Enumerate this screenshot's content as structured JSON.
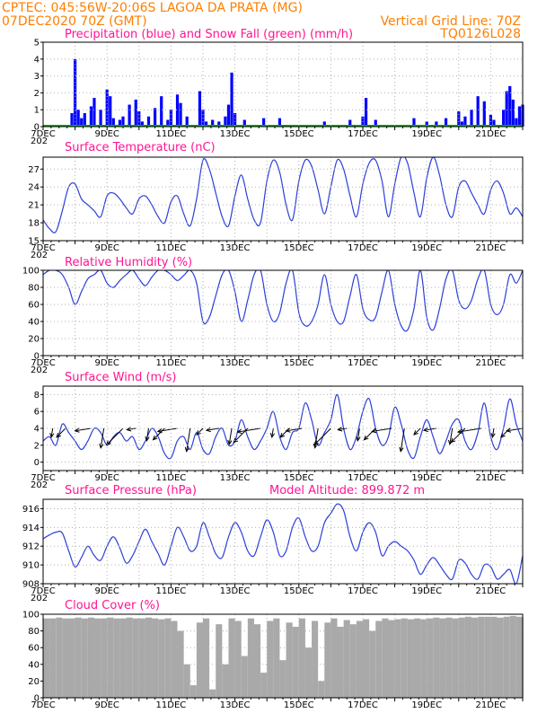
{
  "header": {
    "line1": "CPTEC:   045:56W-20:06S   LAGOA DA PRATA (MG)",
    "line2": "07DEC2020 70Z (GMT)",
    "vgrid": "Vertical Grid Line: 70Z",
    "code": "TQ0126L028"
  },
  "colors": {
    "header": "#ff7f00",
    "panel_title": "#ff1493",
    "precip": "#0000ff",
    "snow": "#00aa00",
    "line": "#2c3fd8",
    "cloud": "#a9a9a9",
    "grid": "#b0b0b0"
  },
  "x_axis": {
    "day_start": 7,
    "day_end": 22,
    "tick_labels": [
      "7DEC",
      "9DEC",
      "11DEC",
      "13DEC",
      "15DEC",
      "17DEC",
      "19DEC",
      "21DEC"
    ],
    "tick_days": [
      7,
      9,
      11,
      13,
      15,
      17,
      19,
      21
    ],
    "year_stub": "202"
  },
  "chart_data": [
    {
      "type": "bar",
      "title": "Precipitation (blue) and Snow Fall (green) (mm/h)",
      "ylim": [
        0,
        5
      ],
      "yticks": [
        "0",
        "1",
        "2",
        "3",
        "4",
        "5"
      ],
      "series": [
        {
          "name": "Precipitation",
          "x": [
            7.9,
            8.0,
            8.1,
            8.2,
            8.3,
            8.5,
            8.6,
            8.8,
            9.0,
            9.1,
            9.2,
            9.4,
            9.5,
            9.7,
            9.9,
            10.0,
            10.1,
            10.3,
            10.5,
            10.7,
            10.9,
            11.0,
            11.2,
            11.3,
            11.5,
            11.9,
            12.0,
            12.1,
            12.3,
            12.5,
            12.7,
            12.8,
            12.9,
            13.0,
            13.3,
            13.9,
            14.4,
            15.8,
            16.6,
            17.0,
            17.1,
            17.4,
            18.6,
            19.0,
            19.3,
            19.6,
            20.0,
            20.1,
            20.2,
            20.4,
            20.6,
            20.8,
            21.0,
            21.1,
            21.4,
            21.5,
            21.6,
            21.7,
            21.8,
            21.9,
            22.0
          ],
          "values": [
            0.8,
            4.0,
            1.0,
            0.5,
            0.8,
            1.2,
            1.7,
            1.0,
            2.2,
            1.8,
            0.5,
            0.4,
            0.6,
            1.3,
            1.6,
            0.9,
            0.3,
            0.6,
            1.1,
            1.8,
            0.4,
            1.0,
            1.9,
            1.4,
            0.6,
            2.1,
            1.0,
            0.3,
            0.4,
            0.3,
            0.6,
            1.3,
            3.2,
            0.8,
            0.4,
            0.5,
            0.5,
            0.3,
            0.4,
            0.6,
            1.7,
            0.4,
            0.5,
            0.3,
            0.3,
            0.5,
            0.9,
            0.3,
            0.6,
            1.0,
            1.8,
            1.5,
            0.7,
            0.4,
            1.0,
            2.1,
            2.4,
            1.6,
            0.5,
            1.2,
            1.3
          ]
        },
        {
          "name": "Snow Fall",
          "x": [
            7.0,
            22.0
          ],
          "values": [
            0,
            0
          ]
        }
      ]
    },
    {
      "type": "line",
      "title": "Surface Temperature (nC)",
      "ylim": [
        15,
        29
      ],
      "yticks": [
        "15",
        "18",
        "21",
        "24",
        "27"
      ],
      "x": [
        7.0,
        7.2,
        7.4,
        7.6,
        7.8,
        8.0,
        8.2,
        8.4,
        8.6,
        8.8,
        9.0,
        9.2,
        9.4,
        9.6,
        9.8,
        10.0,
        10.2,
        10.4,
        10.6,
        10.8,
        11.0,
        11.2,
        11.4,
        11.6,
        11.8,
        12.0,
        12.2,
        12.4,
        12.6,
        12.8,
        13.0,
        13.2,
        13.4,
        13.6,
        13.8,
        14.0,
        14.2,
        14.4,
        14.6,
        14.8,
        15.0,
        15.2,
        15.4,
        15.6,
        15.8,
        16.0,
        16.2,
        16.4,
        16.6,
        16.8,
        17.0,
        17.2,
        17.4,
        17.6,
        17.8,
        18.0,
        18.2,
        18.4,
        18.6,
        18.8,
        19.0,
        19.2,
        19.4,
        19.6,
        19.8,
        20.0,
        20.2,
        20.4,
        20.6,
        20.8,
        21.0,
        21.2,
        21.4,
        21.6,
        21.8,
        22.0
      ],
      "values": [
        18.5,
        17.0,
        16.5,
        20.0,
        24.0,
        24.5,
        22.0,
        21.0,
        20.0,
        19.0,
        22.5,
        23.0,
        22.0,
        20.5,
        19.5,
        22.0,
        22.5,
        21.0,
        19.0,
        18.0,
        21.5,
        22.5,
        19.5,
        17.5,
        22.0,
        28.5,
        27.0,
        23.0,
        19.0,
        17.5,
        22.5,
        26.0,
        22.0,
        18.5,
        18.0,
        25.0,
        28.5,
        26.5,
        21.0,
        18.5,
        25.0,
        28.5,
        27.5,
        23.5,
        19.5,
        24.0,
        28.5,
        27.0,
        22.5,
        19.0,
        24.5,
        28.0,
        28.5,
        25.0,
        19.0,
        24.5,
        29.0,
        28.0,
        23.0,
        19.0,
        25.5,
        29.0,
        26.0,
        21.0,
        19.0,
        24.0,
        25.0,
        23.0,
        21.0,
        19.5,
        23.5,
        25.0,
        23.0,
        19.5,
        20.5,
        19.0
      ]
    },
    {
      "type": "line",
      "title": "Relative Humidity (%)",
      "ylim": [
        0,
        100
      ],
      "yticks": [
        "0",
        "20",
        "40",
        "60",
        "80",
        "100"
      ],
      "x": [
        7.0,
        7.2,
        7.4,
        7.6,
        7.8,
        8.0,
        8.2,
        8.4,
        8.6,
        8.8,
        9.0,
        9.2,
        9.4,
        9.6,
        9.8,
        10.0,
        10.2,
        10.4,
        10.6,
        10.8,
        11.0,
        11.2,
        11.4,
        11.6,
        11.8,
        12.0,
        12.2,
        12.4,
        12.6,
        12.8,
        13.0,
        13.2,
        13.4,
        13.6,
        13.8,
        14.0,
        14.2,
        14.4,
        14.6,
        14.8,
        15.0,
        15.2,
        15.4,
        15.6,
        15.8,
        16.0,
        16.2,
        16.4,
        16.6,
        16.8,
        17.0,
        17.2,
        17.4,
        17.6,
        17.8,
        18.0,
        18.2,
        18.4,
        18.6,
        18.8,
        19.0,
        19.2,
        19.4,
        19.6,
        19.8,
        20.0,
        20.2,
        20.4,
        20.6,
        20.8,
        21.0,
        21.2,
        21.4,
        21.6,
        21.8,
        22.0
      ],
      "values": [
        95,
        100,
        100,
        95,
        80,
        60,
        75,
        90,
        95,
        100,
        85,
        80,
        88,
        95,
        100,
        90,
        82,
        92,
        100,
        100,
        95,
        88,
        94,
        100,
        85,
        40,
        45,
        70,
        95,
        100,
        75,
        40,
        65,
        95,
        100,
        60,
        40,
        50,
        85,
        100,
        50,
        35,
        40,
        60,
        95,
        60,
        40,
        40,
        70,
        95,
        55,
        42,
        45,
        75,
        100,
        60,
        35,
        30,
        55,
        100,
        45,
        30,
        55,
        90,
        100,
        65,
        55,
        65,
        90,
        100,
        60,
        48,
        60,
        95,
        85,
        100
      ]
    },
    {
      "type": "line",
      "title": "Surface Wind (m/s)",
      "ylim": [
        -1,
        9
      ],
      "yticks": [
        "0",
        "2",
        "4",
        "6",
        "8"
      ],
      "x": [
        7.0,
        7.2,
        7.4,
        7.6,
        7.8,
        8.0,
        8.2,
        8.4,
        8.6,
        8.8,
        9.0,
        9.2,
        9.4,
        9.6,
        9.8,
        10.0,
        10.2,
        10.4,
        10.6,
        10.8,
        11.0,
        11.2,
        11.4,
        11.6,
        11.8,
        12.0,
        12.2,
        12.4,
        12.6,
        12.8,
        13.0,
        13.2,
        13.4,
        13.6,
        13.8,
        14.0,
        14.2,
        14.4,
        14.6,
        14.8,
        15.0,
        15.2,
        15.4,
        15.6,
        15.8,
        16.0,
        16.2,
        16.4,
        16.6,
        16.8,
        17.0,
        17.2,
        17.4,
        17.6,
        17.8,
        18.0,
        18.2,
        18.4,
        18.6,
        18.8,
        19.0,
        19.2,
        19.4,
        19.6,
        19.8,
        20.0,
        20.2,
        20.4,
        20.6,
        20.8,
        21.0,
        21.2,
        21.4,
        21.6,
        21.8,
        22.0
      ],
      "values": [
        2.5,
        3.0,
        2.0,
        4.5,
        3.5,
        2.5,
        1.5,
        2.5,
        4.0,
        3.5,
        2.0,
        3.0,
        3.5,
        2.5,
        3.0,
        1.5,
        2.5,
        4.0,
        3.0,
        1.0,
        0.5,
        2.5,
        3.0,
        1.5,
        3.5,
        1.5,
        1.0,
        3.0,
        4.0,
        2.0,
        2.5,
        5.0,
        3.0,
        1.5,
        2.5,
        4.0,
        6.0,
        3.0,
        1.5,
        3.5,
        4.0,
        7.0,
        5.0,
        2.0,
        3.5,
        5.0,
        8.0,
        4.0,
        1.5,
        3.0,
        6.0,
        7.5,
        4.0,
        2.0,
        3.0,
        6.5,
        4.5,
        1.5,
        0.5,
        3.0,
        5.0,
        3.0,
        1.0,
        2.5,
        4.5,
        5.0,
        2.5,
        1.5,
        3.5,
        7.0,
        3.0,
        1.5,
        4.0,
        7.5,
        4.5,
        2.5
      ]
    },
    {
      "type": "line",
      "title": "Surface Pressure (hPa)",
      "subtitle": "Model Altitude: 899.872 m",
      "ylim": [
        908,
        917
      ],
      "yticks": [
        "908",
        "910",
        "912",
        "914",
        "916"
      ],
      "x": [
        7.0,
        7.2,
        7.4,
        7.6,
        7.8,
        8.0,
        8.2,
        8.4,
        8.6,
        8.8,
        9.0,
        9.2,
        9.4,
        9.6,
        9.8,
        10.0,
        10.2,
        10.4,
        10.6,
        10.8,
        11.0,
        11.2,
        11.4,
        11.6,
        11.8,
        12.0,
        12.2,
        12.4,
        12.6,
        12.8,
        13.0,
        13.2,
        13.4,
        13.6,
        13.8,
        14.0,
        14.2,
        14.4,
        14.6,
        14.8,
        15.0,
        15.2,
        15.4,
        15.6,
        15.8,
        16.0,
        16.2,
        16.4,
        16.6,
        16.8,
        17.0,
        17.2,
        17.4,
        17.6,
        17.8,
        18.0,
        18.2,
        18.4,
        18.6,
        18.8,
        19.0,
        19.2,
        19.4,
        19.6,
        19.8,
        20.0,
        20.2,
        20.4,
        20.6,
        20.8,
        21.0,
        21.2,
        21.4,
        21.6,
        21.8,
        22.0
      ],
      "values": [
        912.8,
        913.2,
        913.5,
        913.4,
        911.5,
        909.8,
        910.8,
        912.0,
        911.0,
        910.5,
        912.0,
        913.0,
        911.8,
        910.2,
        911.0,
        912.5,
        913.8,
        912.5,
        911.2,
        910.0,
        912.0,
        914.0,
        913.0,
        911.5,
        912.0,
        914.5,
        913.0,
        911.2,
        910.8,
        913.0,
        914.5,
        913.5,
        911.5,
        911.0,
        913.0,
        914.8,
        913.5,
        911.0,
        911.5,
        914.0,
        915.0,
        913.0,
        911.5,
        912.0,
        914.5,
        915.5,
        916.5,
        915.8,
        913.0,
        911.5,
        913.5,
        914.5,
        913.5,
        911.0,
        912.0,
        912.5,
        912.0,
        911.5,
        910.5,
        909.0,
        910.0,
        910.8,
        910.0,
        909.0,
        908.5,
        910.5,
        910.2,
        909.0,
        908.5,
        910.0,
        909.8,
        908.5,
        909.0,
        909.5,
        908.0,
        911.0
      ]
    },
    {
      "type": "bar",
      "title": "Cloud Cover (%)",
      "ylim": [
        0,
        100
      ],
      "yticks": [
        "0",
        "20",
        "40",
        "60",
        "80",
        "100"
      ],
      "x": [
        7.0,
        7.2,
        7.4,
        7.6,
        7.8,
        8.0,
        8.2,
        8.4,
        8.6,
        8.8,
        9.0,
        9.2,
        9.4,
        9.6,
        9.8,
        10.0,
        10.2,
        10.4,
        10.6,
        10.8,
        11.0,
        11.2,
        11.4,
        11.6,
        11.8,
        12.0,
        12.2,
        12.4,
        12.6,
        12.8,
        13.0,
        13.2,
        13.4,
        13.6,
        13.8,
        14.0,
        14.2,
        14.4,
        14.6,
        14.8,
        15.0,
        15.2,
        15.4,
        15.6,
        15.8,
        16.0,
        16.2,
        16.4,
        16.6,
        16.8,
        17.0,
        17.2,
        17.4,
        17.6,
        17.8,
        18.0,
        18.2,
        18.4,
        18.6,
        18.8,
        19.0,
        19.2,
        19.4,
        19.6,
        19.8,
        20.0,
        20.2,
        20.4,
        20.6,
        20.8,
        21.0,
        21.2,
        21.4,
        21.6,
        21.8,
        22.0
      ],
      "values": [
        95,
        95,
        96,
        95,
        95,
        96,
        95,
        96,
        95,
        95,
        96,
        95,
        95,
        96,
        95,
        95,
        96,
        95,
        94,
        95,
        92,
        80,
        40,
        15,
        90,
        95,
        10,
        88,
        40,
        95,
        92,
        50,
        95,
        88,
        30,
        92,
        95,
        45,
        90,
        85,
        95,
        60,
        92,
        20,
        90,
        95,
        85,
        93,
        88,
        92,
        94,
        80,
        92,
        95,
        93,
        94,
        95,
        94,
        95,
        94,
        95,
        96,
        95,
        96,
        95,
        96,
        97,
        96,
        97,
        97,
        97,
        96,
        97,
        98,
        97,
        96
      ]
    }
  ]
}
